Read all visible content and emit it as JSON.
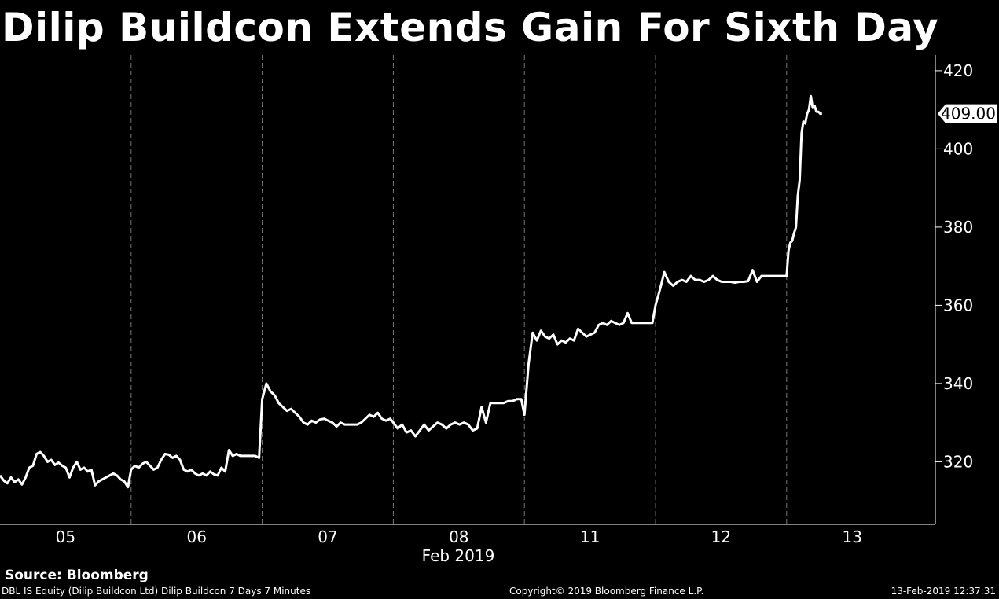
{
  "chart_data": {
    "type": "line",
    "title": "Dilip Buildcon Extends Gain For Sixth Day",
    "x_tick_labels": [
      "05",
      "06",
      "07",
      "08",
      "11",
      "12",
      "13"
    ],
    "x_axis_month_label": "Feb 2019",
    "y_ticks": [
      320,
      340,
      360,
      380,
      400,
      420
    ],
    "ylim": [
      304,
      424
    ],
    "last_value_label": "409.00",
    "series": [
      {
        "days": [
          {
            "label": "05",
            "values": [
              316.5,
              315.2,
              314.5,
              316.0,
              314.8,
              315.5,
              314.2,
              316.0,
              318.5,
              319.0,
              322.0,
              322.5,
              321.5,
              320.0,
              320.5,
              319.2,
              319.8,
              319.0,
              318.5,
              316.0,
              318.5,
              320.0,
              318.0,
              318.5,
              317.5,
              318.0,
              314.0,
              315.0,
              315.5,
              316.0,
              316.5,
              317.0,
              316.5,
              315.5,
              315.0,
              313.5
            ]
          },
          {
            "label": "06",
            "values": [
              318.0,
              319.0,
              318.5,
              319.5,
              320.0,
              319.0,
              318.0,
              318.5,
              320.5,
              322.0,
              321.8,
              321.0,
              321.5,
              320.5,
              318.0,
              317.5,
              318.0,
              317.0,
              316.5,
              317.0,
              316.5,
              317.5,
              316.8,
              316.5,
              318.5,
              317.5,
              323.0,
              321.5,
              322.0,
              321.5,
              321.5,
              321.5,
              321.5,
              321.5,
              321.0
            ]
          },
          {
            "label": "07",
            "values": [
              336.0,
              340.0,
              338.0,
              337.0,
              335.0,
              334.0,
              333.0,
              333.5,
              332.5,
              331.5,
              330.0,
              329.5,
              330.5,
              330.0,
              330.8,
              331.0,
              330.5,
              330.0,
              329.0,
              330.0,
              329.5,
              329.5,
              329.5,
              329.5,
              330.0,
              331.0,
              332.0,
              331.5,
              332.5,
              331.0,
              330.5,
              331.0
            ]
          },
          {
            "label": "08",
            "values": [
              330.0,
              328.5,
              329.5,
              327.5,
              328.0,
              326.5,
              328.0,
              329.5,
              328.0,
              329.0,
              330.0,
              329.5,
              328.5,
              329.5,
              330.0,
              329.5,
              330.0,
              329.5,
              328.0,
              328.5,
              334.0,
              330.0,
              335.0,
              335.0,
              335.0,
              335.0,
              335.5,
              335.5,
              336.0,
              336.0
            ]
          },
          {
            "label": "11",
            "values": [
              332.0,
              345.0,
              353.0,
              351.0,
              353.5,
              352.0,
              351.5,
              352.5,
              350.0,
              351.0,
              350.5,
              351.5,
              351.0,
              354.0,
              353.0,
              352.0,
              352.5,
              353.0,
              355.0,
              355.5,
              355.0,
              356.0,
              355.5,
              355.0,
              355.5,
              358.0,
              355.5,
              355.5,
              355.5,
              355.5,
              355.5,
              355.5
            ]
          },
          {
            "label": "12",
            "values": [
              360.0,
              364.0,
              368.5,
              366.0,
              365.0,
              366.0,
              366.5,
              366.0,
              367.5,
              366.5,
              366.5,
              366.0,
              366.5,
              367.5,
              366.5,
              366.0,
              366.0,
              366.0,
              365.8,
              366.0,
              366.0,
              366.2,
              369.0,
              366.0,
              367.5,
              367.5,
              367.5,
              367.5,
              367.5,
              367.5
            ]
          },
          {
            "label": "13",
            "values": [
              367.5,
              374.0,
              376.0,
              376.5,
              378.5,
              380.0,
              388.0,
              392.0,
              404.0,
              407.0,
              406.5,
              409.0,
              410.0,
              413.5,
              410.5,
              411.0,
              409.5,
              409.5,
              409.0,
              409.0
            ]
          }
        ]
      }
    ]
  },
  "source": "Source: Bloomberg",
  "footer": {
    "left": "DBL IS Equity (Dilip Buildcon Ltd) Dilip Buildcon 7 Days 7 Minutes",
    "center": "Copyright© 2019 Bloomberg Finance L.P.",
    "right": "13-Feb-2019 12:37:31"
  }
}
